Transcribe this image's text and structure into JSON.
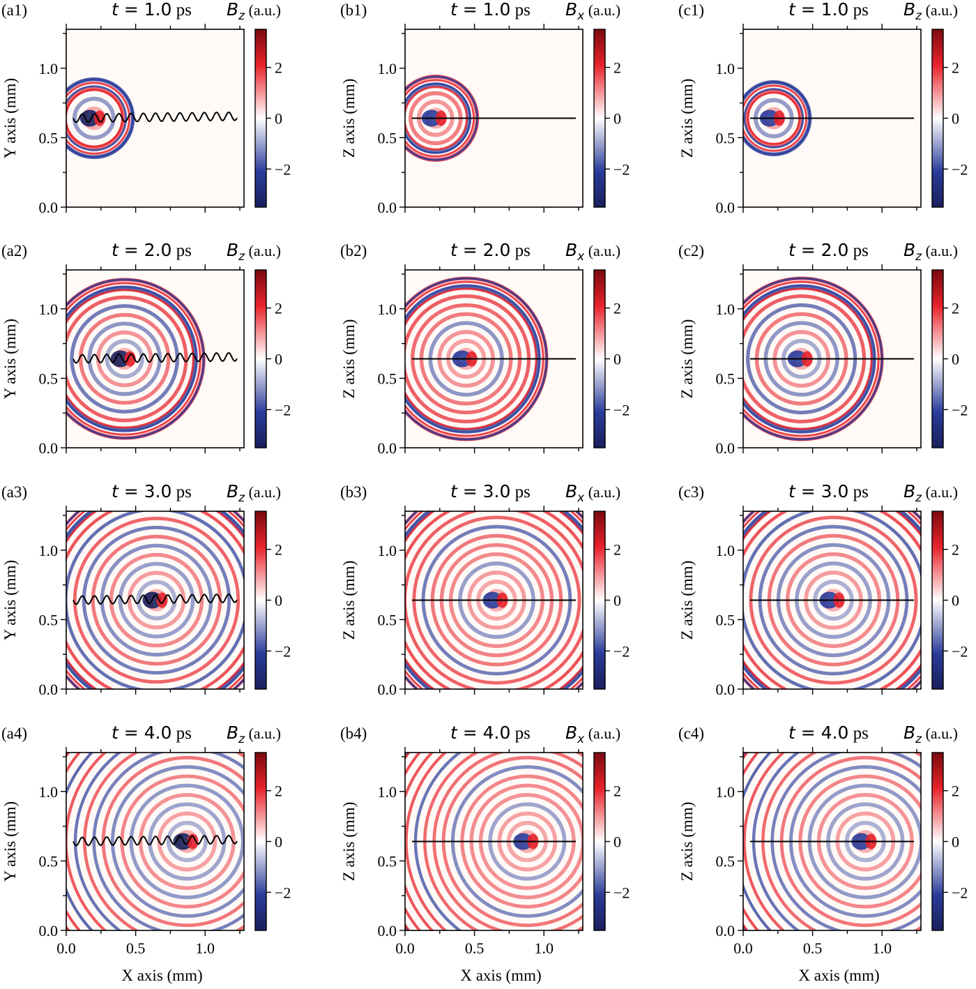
{
  "chart_data": {
    "type": "heatmap",
    "figure": "grid of 12 field maps (3 columns x 4 rows)",
    "time_label_prefix": "t = ",
    "time_unit": "ps",
    "colorbar": {
      "range": [
        -3.5,
        3.5
      ],
      "ticks": [
        -2,
        0,
        2
      ],
      "tick_labels": [
        "−2",
        "0",
        "2"
      ],
      "colormap": "seismic (blue–white–red)"
    },
    "x_axis": {
      "label": "X axis (mm)",
      "range": [
        0,
        1.28
      ],
      "ticks": [
        0.0,
        0.5,
        1.0
      ],
      "tick_labels": [
        "0.0",
        "0.5",
        "1.0"
      ]
    },
    "y_range": [
      0,
      1.28
    ],
    "y_ticks": [
      0.0,
      0.5,
      1.0
    ],
    "y_tick_labels": [
      "0.0",
      "0.5",
      "1.0"
    ],
    "columns": [
      {
        "id": "a",
        "ylabel": "Y axis (mm)",
        "field": "B",
        "sub": "z",
        "unit": "(a.u.)",
        "axis_line": "wavy"
      },
      {
        "id": "b",
        "ylabel": "Z axis (mm)",
        "field": "B",
        "sub": "x",
        "unit": "(a.u.)",
        "axis_line": "straight"
      },
      {
        "id": "c",
        "ylabel": "Z axis (mm)",
        "field": "B",
        "sub": "z",
        "unit": "(a.u.)",
        "axis_line": "straight"
      }
    ],
    "panels": [
      {
        "label": "(a1)",
        "time": "1.0",
        "column": 0,
        "row": 0,
        "source_x": 0.2,
        "wavefront_radius": 0.28
      },
      {
        "label": "(b1)",
        "time": "1.0",
        "column": 1,
        "row": 0,
        "source_x": 0.22,
        "wavefront_radius": 0.3
      },
      {
        "label": "(c1)",
        "time": "1.0",
        "column": 2,
        "row": 0,
        "source_x": 0.22,
        "wavefront_radius": 0.26
      },
      {
        "label": "(a2)",
        "time": "2.0",
        "column": 0,
        "row": 1,
        "source_x": 0.42,
        "wavefront_radius": 0.57
      },
      {
        "label": "(b2)",
        "time": "2.0",
        "column": 1,
        "row": 1,
        "source_x": 0.44,
        "wavefront_radius": 0.58
      },
      {
        "label": "(c2)",
        "time": "2.0",
        "column": 2,
        "row": 1,
        "source_x": 0.42,
        "wavefront_radius": 0.58
      },
      {
        "label": "(a3)",
        "time": "3.0",
        "column": 0,
        "row": 2,
        "source_x": 0.65,
        "wavefront_radius": 0.85
      },
      {
        "label": "(b3)",
        "time": "3.0",
        "column": 1,
        "row": 2,
        "source_x": 0.66,
        "wavefront_radius": 0.86
      },
      {
        "label": "(c3)",
        "time": "3.0",
        "column": 2,
        "row": 2,
        "source_x": 0.65,
        "wavefront_radius": 0.86
      },
      {
        "label": "(a4)",
        "time": "4.0",
        "column": 0,
        "row": 3,
        "source_x": 0.87,
        "wavefront_radius": 1.14
      },
      {
        "label": "(b4)",
        "time": "4.0",
        "column": 1,
        "row": 3,
        "source_x": 0.88,
        "wavefront_radius": 1.14
      },
      {
        "label": "(c4)",
        "time": "4.0",
        "column": 2,
        "row": 3,
        "source_x": 0.88,
        "wavefront_radius": 1.14
      }
    ],
    "source_y": 0.64,
    "line_x_range": [
      0.05,
      1.23
    ],
    "colors": {
      "positive": "#e8222a",
      "positive_dark": "#7a0a0f",
      "negative": "#2a3c9a",
      "negative_dark": "#1a1f5c",
      "background": "#fffaf7",
      "line": "#000000"
    }
  }
}
